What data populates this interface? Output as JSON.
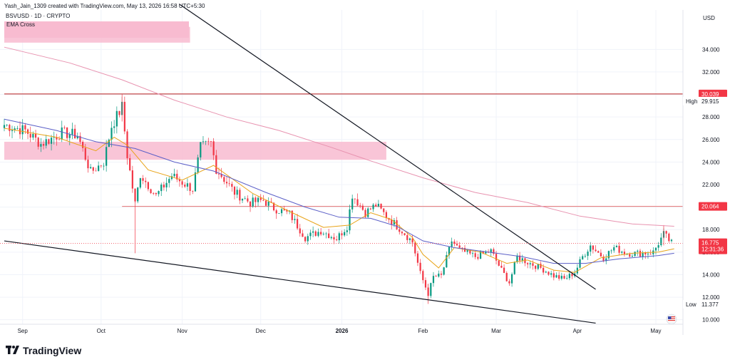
{
  "header": {
    "credit": "Yash_Jain_1309 created with TradingView.com, May 13, 2026 16:58 UTC+5:30"
  },
  "brand": {
    "name": "TradingView",
    "icon": "tradingview-logo-icon"
  },
  "chart_data": {
    "type": "candlestick",
    "symbol_label": "BSVUSD · 1D · CRYPTO",
    "indicator_label": "EMA Cross",
    "currency": "USD",
    "ylim": [
      9.6,
      37.5
    ],
    "y_ticks": [
      10,
      12,
      14,
      16,
      18,
      20,
      22,
      24,
      26,
      28,
      30,
      32,
      34
    ],
    "y_tick_labels": [
      "10.000",
      "12.000",
      "14.000",
      "16.000",
      "18.000",
      "20.000",
      "22.000",
      "24.000",
      "26.000",
      "28.000",
      "30.000",
      "32.000",
      "34.000"
    ],
    "x_range_days": [
      0,
      255
    ],
    "x_ticks": [
      {
        "label": "Sep",
        "day": 7,
        "bold": false
      },
      {
        "label": "Oct",
        "day": 37,
        "bold": false
      },
      {
        "label": "Nov",
        "day": 68,
        "bold": false
      },
      {
        "label": "Dec",
        "day": 98,
        "bold": false
      },
      {
        "label": "2026",
        "day": 129,
        "bold": true
      },
      {
        "label": "Feb",
        "day": 160,
        "bold": false
      },
      {
        "label": "Mar",
        "day": 188,
        "bold": false
      },
      {
        "label": "Apr",
        "day": 219,
        "bold": false
      },
      {
        "label": "May",
        "day": 249,
        "bold": false
      }
    ],
    "price_tags": [
      {
        "kind": "level",
        "value": 30.039,
        "label": "30.039",
        "color": "#f23645"
      },
      {
        "kind": "high",
        "value": 29.915,
        "label": "29.915",
        "name": "High"
      },
      {
        "kind": "level",
        "value": 20.064,
        "label": "20.064",
        "color": "#f23645"
      },
      {
        "kind": "last",
        "value": 16.775,
        "label": "16.775",
        "countdown": "12:31:36",
        "color": "#f23645"
      },
      {
        "kind": "low",
        "value": 11.377,
        "label": "11.377",
        "name": "Low"
      }
    ],
    "horizontal_levels": [
      {
        "value": 30.039,
        "day_from": 0,
        "color": "#b71c1c"
      },
      {
        "value": 20.064,
        "day_from": 45,
        "color": "#e57373"
      }
    ],
    "zones": [
      {
        "day_from": 0,
        "day_to": 71,
        "y_low": 34.6,
        "y_high": 36.0,
        "color": "#f8bbd0"
      },
      {
        "day_from": 0,
        "day_to": 146,
        "y_low": 24.2,
        "y_high": 25.8,
        "color": "#f8bbd0"
      }
    ],
    "trendlines": [
      {
        "from": [
          67,
          38.0
        ],
        "to": [
          226,
          12.7
        ],
        "color": "#131722"
      },
      {
        "from": [
          0,
          17.0
        ],
        "to": [
          226,
          9.7
        ],
        "color": "#131722"
      }
    ],
    "key_points": [
      {
        "day": 0,
        "price": 27.3
      },
      {
        "day": 8,
        "price": 26.8
      },
      {
        "day": 14,
        "price": 25.6
      },
      {
        "day": 22,
        "price": 26.6
      },
      {
        "day": 28,
        "price": 26.4
      },
      {
        "day": 33,
        "price": 23.1
      },
      {
        "day": 38,
        "price": 24.0
      },
      {
        "day": 41,
        "price": 27.2
      },
      {
        "day": 45,
        "price": 28.9
      },
      {
        "day": 47,
        "price": 24.6
      },
      {
        "day": 50,
        "price": 20.3
      },
      {
        "day": 52,
        "price": 22.9
      },
      {
        "day": 58,
        "price": 21.0
      },
      {
        "day": 64,
        "price": 22.8
      },
      {
        "day": 72,
        "price": 21.6
      },
      {
        "day": 75,
        "price": 25.3
      },
      {
        "day": 79,
        "price": 25.7
      },
      {
        "day": 81,
        "price": 23.4
      },
      {
        "day": 88,
        "price": 21.3
      },
      {
        "day": 94,
        "price": 20.4
      },
      {
        "day": 99,
        "price": 20.6
      },
      {
        "day": 103,
        "price": 19.9
      },
      {
        "day": 109,
        "price": 19.4
      },
      {
        "day": 115,
        "price": 17.3
      },
      {
        "day": 121,
        "price": 17.9
      },
      {
        "day": 127,
        "price": 17.2
      },
      {
        "day": 131,
        "price": 18.3
      },
      {
        "day": 133,
        "price": 21.1
      },
      {
        "day": 138,
        "price": 19.5
      },
      {
        "day": 142,
        "price": 20.2
      },
      {
        "day": 146,
        "price": 19.2
      },
      {
        "day": 152,
        "price": 17.9
      },
      {
        "day": 156,
        "price": 16.9
      },
      {
        "day": 159,
        "price": 14.1
      },
      {
        "day": 162,
        "price": 12.3
      },
      {
        "day": 164,
        "price": 13.8
      },
      {
        "day": 167,
        "price": 13.9
      },
      {
        "day": 171,
        "price": 17.0
      },
      {
        "day": 174,
        "price": 16.2
      },
      {
        "day": 180,
        "price": 15.6
      },
      {
        "day": 186,
        "price": 16.1
      },
      {
        "day": 190,
        "price": 14.4
      },
      {
        "day": 193,
        "price": 13.3
      },
      {
        "day": 196,
        "price": 15.6
      },
      {
        "day": 200,
        "price": 15.1
      },
      {
        "day": 205,
        "price": 14.6
      },
      {
        "day": 210,
        "price": 13.9
      },
      {
        "day": 214,
        "price": 13.6
      },
      {
        "day": 218,
        "price": 14.2
      },
      {
        "day": 221,
        "price": 15.6
      },
      {
        "day": 224,
        "price": 16.6
      },
      {
        "day": 229,
        "price": 15.5
      },
      {
        "day": 233,
        "price": 16.4
      },
      {
        "day": 238,
        "price": 15.9
      },
      {
        "day": 243,
        "price": 15.9
      },
      {
        "day": 248,
        "price": 16.0
      },
      {
        "day": 252,
        "price": 17.6
      },
      {
        "day": 255,
        "price": 16.8
      }
    ],
    "ema_lines": [
      {
        "color": "#e8a317",
        "points": [
          [
            0,
            27.0
          ],
          [
            20,
            26.2
          ],
          [
            35,
            25.0
          ],
          [
            42,
            26.2
          ],
          [
            47,
            25.5
          ],
          [
            55,
            23.3
          ],
          [
            68,
            22.4
          ],
          [
            80,
            23.7
          ],
          [
            95,
            21.2
          ],
          [
            110,
            19.5
          ],
          [
            122,
            18.2
          ],
          [
            132,
            18.4
          ],
          [
            140,
            19.5
          ],
          [
            148,
            18.9
          ],
          [
            156,
            17.3
          ],
          [
            160,
            15.8
          ],
          [
            166,
            14.6
          ],
          [
            172,
            16.4
          ],
          [
            182,
            16.0
          ],
          [
            192,
            15.0
          ],
          [
            200,
            15.3
          ],
          [
            210,
            14.4
          ],
          [
            218,
            14.2
          ],
          [
            228,
            15.5
          ],
          [
            240,
            15.9
          ],
          [
            250,
            16.0
          ],
          [
            256,
            16.3
          ]
        ]
      },
      {
        "color": "#5b5fc7",
        "points": [
          [
            0,
            27.8
          ],
          [
            20,
            26.8
          ],
          [
            35,
            25.8
          ],
          [
            50,
            25.2
          ],
          [
            65,
            24.0
          ],
          [
            80,
            23.2
          ],
          [
            100,
            21.3
          ],
          [
            115,
            20.0
          ],
          [
            128,
            19.1
          ],
          [
            140,
            19.0
          ],
          [
            150,
            18.3
          ],
          [
            160,
            17.0
          ],
          [
            172,
            16.4
          ],
          [
            185,
            16.0
          ],
          [
            198,
            15.6
          ],
          [
            210,
            15.0
          ],
          [
            222,
            15.0
          ],
          [
            235,
            15.4
          ],
          [
            250,
            15.7
          ],
          [
            256,
            15.9
          ]
        ]
      },
      {
        "color": "#e893b0",
        "points": [
          [
            0,
            34.2
          ],
          [
            25,
            32.8
          ],
          [
            45,
            31.3
          ],
          [
            65,
            29.5
          ],
          [
            85,
            28.0
          ],
          [
            105,
            26.8
          ],
          [
            125,
            25.3
          ],
          [
            140,
            24.1
          ],
          [
            160,
            22.6
          ],
          [
            180,
            21.3
          ],
          [
            200,
            20.4
          ],
          [
            220,
            19.2
          ],
          [
            240,
            18.5
          ],
          [
            256,
            18.3
          ]
        ]
      }
    ]
  }
}
